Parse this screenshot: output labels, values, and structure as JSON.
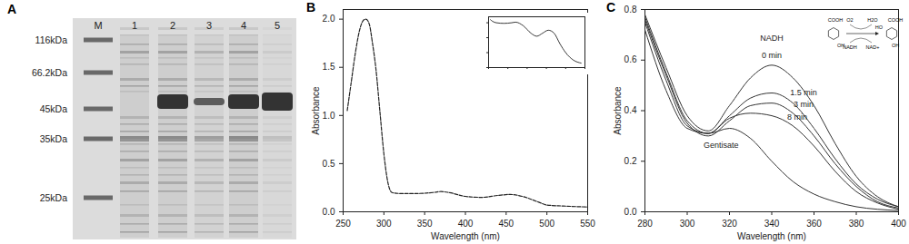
{
  "gel": {
    "title": "A",
    "marker_label": "M",
    "lanes": [
      "1",
      "2",
      "3",
      "4",
      "5"
    ],
    "markers": [
      {
        "value": 116,
        "label": "116kDa"
      },
      {
        "value": 66.2,
        "label": "66.2kDa"
      },
      {
        "value": 45,
        "label": "45kDa"
      },
      {
        "value": 35,
        "label": "35kDa"
      },
      {
        "value": 25,
        "label": "25kDa"
      }
    ]
  },
  "chart_data": [
    {
      "type": "line",
      "title": "B",
      "x_label": "Wavelength (nm)",
      "y_label": "Absorbance",
      "x": [
        255,
        260,
        265,
        270,
        275,
        278,
        282,
        286,
        290,
        295,
        300,
        305,
        310,
        320,
        340,
        360,
        370,
        380,
        400,
        420,
        440,
        455,
        470,
        490,
        500,
        520,
        550
      ],
      "values": [
        1.05,
        1.35,
        1.65,
        1.88,
        1.99,
        2.0,
        1.95,
        1.75,
        1.5,
        1.05,
        0.6,
        0.3,
        0.2,
        0.19,
        0.19,
        0.2,
        0.21,
        0.2,
        0.16,
        0.15,
        0.17,
        0.18,
        0.16,
        0.1,
        0.07,
        0.06,
        0.05
      ],
      "color": "#222222",
      "line_style": "dashed",
      "xlim": [
        250,
        550
      ],
      "xticks": [
        250,
        300,
        350,
        400,
        450,
        500,
        550
      ],
      "ylim": [
        0,
        2.1
      ],
      "yticks": [
        {
          "value": 0,
          "label": "0.0"
        },
        {
          "value": 0.5,
          "label": "0.5"
        },
        {
          "value": 1,
          "label": "1.0"
        },
        {
          "value": 1.5,
          "label": "1.5"
        },
        {
          "value": 2,
          "label": "2.0"
        }
      ]
    },
    {
      "type": "line",
      "tick_labels": false,
      "x": [
        305,
        310,
        320,
        340,
        360,
        370,
        390,
        410,
        425,
        440,
        455,
        470,
        485,
        500,
        520,
        540
      ],
      "values": [
        0.21,
        0.205,
        0.2,
        0.198,
        0.2,
        0.202,
        0.19,
        0.165,
        0.155,
        0.165,
        0.175,
        0.165,
        0.13,
        0.1,
        0.075,
        0.065
      ],
      "color": "#222222",
      "xlim": [
        300,
        550
      ],
      "xticks": [
        300,
        350,
        400,
        450,
        500,
        550
      ],
      "ylim": [
        0.05,
        0.22
      ],
      "yticks": [
        0.05,
        0.1,
        0.15,
        0.2
      ]
    },
    {
      "type": "line",
      "title": "C",
      "x_label": "Wavelength (nm)",
      "y_label": "Absorbance",
      "x": [
        280,
        290,
        300,
        310,
        320,
        330,
        340,
        350,
        360,
        370,
        380,
        390,
        400
      ],
      "series": [
        {
          "values": [
            0.78,
            0.57,
            0.38,
            0.32,
            0.42,
            0.53,
            0.58,
            0.53,
            0.42,
            0.27,
            0.14,
            0.06,
            0.02
          ]
        },
        {
          "values": [
            0.77,
            0.55,
            0.36,
            0.31,
            0.38,
            0.45,
            0.47,
            0.43,
            0.33,
            0.21,
            0.11,
            0.05,
            0.02
          ]
        },
        {
          "values": [
            0.76,
            0.54,
            0.35,
            0.3,
            0.36,
            0.42,
            0.43,
            0.39,
            0.3,
            0.19,
            0.1,
            0.04,
            0.015
          ]
        },
        {
          "values": [
            0.75,
            0.52,
            0.34,
            0.31,
            0.37,
            0.39,
            0.38,
            0.34,
            0.26,
            0.16,
            0.08,
            0.035,
            0.01
          ]
        },
        {
          "values": [
            0.72,
            0.48,
            0.33,
            0.31,
            0.33,
            0.29,
            0.2,
            0.12,
            0.07,
            0.04,
            0.02,
            0.01,
            0.005
          ]
        }
      ],
      "color": "#333333",
      "annotations": [
        {
          "text": "NADH",
          "x": 340,
          "y": 0.67
        },
        {
          "text": "0 min",
          "x": 340,
          "y": 0.6
        },
        {
          "text": "1.5 min",
          "x": 355,
          "y": 0.455
        },
        {
          "text": "3 min",
          "x": 355,
          "y": 0.405
        },
        {
          "text": "8 min",
          "x": 352,
          "y": 0.355
        },
        {
          "text": "Gentisate",
          "x": 316,
          "y": 0.245
        }
      ],
      "scheme": {
        "substrate": [
          "COOH",
          "OH"
        ],
        "left": [
          "O2",
          "NADH"
        ],
        "right": [
          "H2O",
          "NAD+"
        ],
        "product": [
          "COOH",
          "HO",
          "OH"
        ]
      },
      "xlim": [
        280,
        400
      ],
      "xticks": [
        280,
        300,
        320,
        340,
        360,
        380,
        400
      ],
      "ylim": [
        0,
        0.8
      ],
      "yticks": [
        {
          "value": 0,
          "label": "0.0"
        },
        {
          "value": 0.2,
          "label": "0.2"
        },
        {
          "value": 0.4,
          "label": "0.4"
        },
        {
          "value": 0.6,
          "label": "0.6"
        },
        {
          "value": 0.8,
          "label": "0.8"
        }
      ]
    }
  ]
}
